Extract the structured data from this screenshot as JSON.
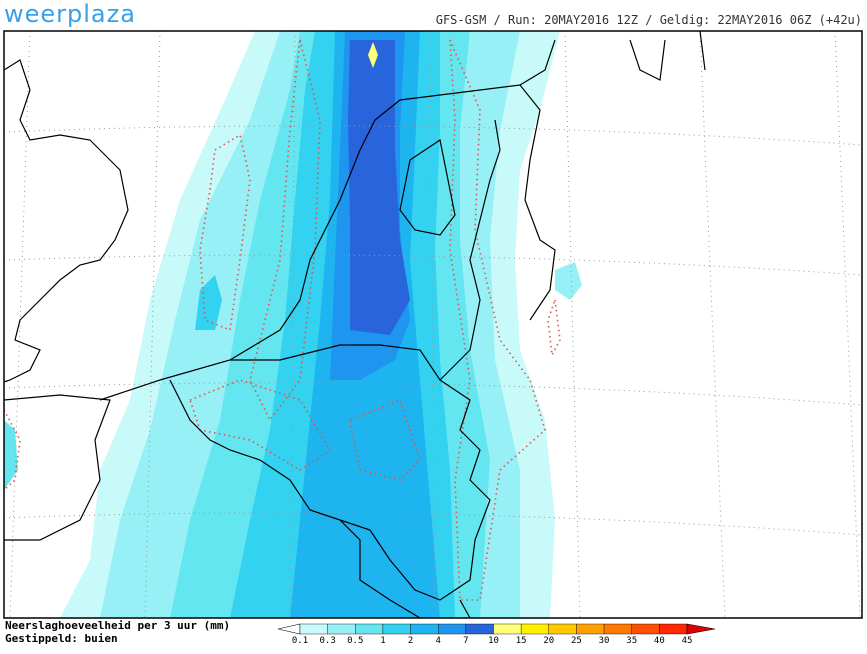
{
  "brand": "weerplaza",
  "header": "GFS-GSM / Run: 20MAY2016 12Z / Geldig: 22MAY2016 06Z (+42u)",
  "legend": {
    "title": "Neerslaghoeveelheid per 3 uur (mm)",
    "subtitle": "Gestippeld: buien",
    "labels": [
      "0.1",
      "0.3",
      "0.5",
      "1",
      "2",
      "4",
      "7",
      "10",
      "15",
      "20",
      "25",
      "30",
      "35",
      "40",
      "45"
    ],
    "colors": [
      "#ffffff",
      "#c8fafa",
      "#96f0f5",
      "#64e6f0",
      "#32d2f0",
      "#1eb4f0",
      "#1e96f0",
      "#2864dc",
      "#ffff78",
      "#fff000",
      "#ffc800",
      "#ffa000",
      "#ff7800",
      "#ff5000",
      "#ff2800",
      "#dc0000"
    ]
  }
}
